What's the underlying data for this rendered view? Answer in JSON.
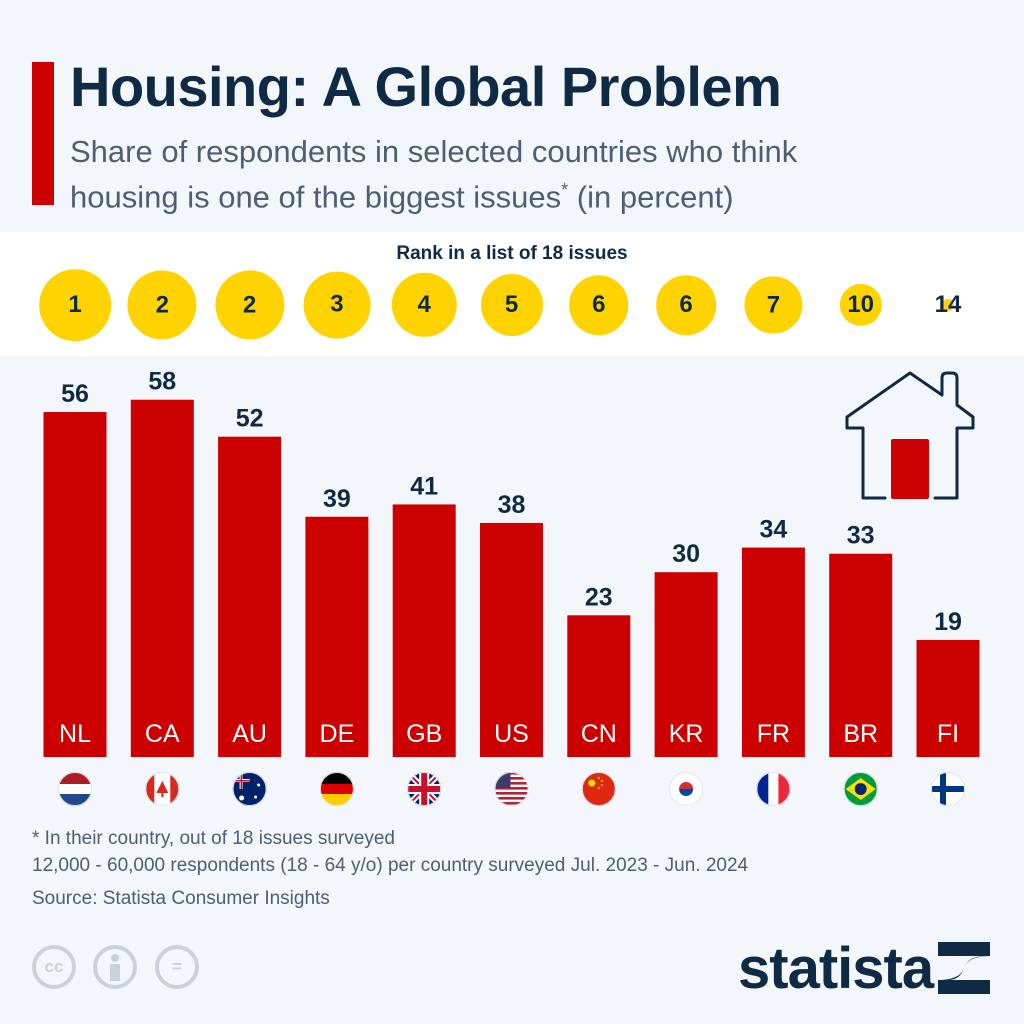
{
  "header": {
    "title": "Housing: A Global Problem",
    "subtitle_line1": "Share of respondents in selected countries who think",
    "subtitle_line2": "housing is one of the biggest issues",
    "subtitle_mark": "*",
    "subtitle_line2_end": " (in percent)"
  },
  "colors": {
    "bar": "#cc0000",
    "rank_circle": "#ffd300",
    "text": "#0f2a44",
    "accent": "#cc0000"
  },
  "chart_data": {
    "type": "bar",
    "categories": [
      "NL",
      "CA",
      "AU",
      "DE",
      "GB",
      "US",
      "CN",
      "KR",
      "FR",
      "BR",
      "FI"
    ],
    "values": [
      56,
      58,
      52,
      39,
      41,
      38,
      23,
      30,
      34,
      33,
      19
    ],
    "ranks": [
      1,
      2,
      2,
      3,
      4,
      5,
      6,
      6,
      7,
      10,
      14
    ],
    "rank_label": "Rank in a list of 18 issues",
    "flags": [
      "netherlands-flag",
      "canada-flag",
      "australia-flag",
      "germany-flag",
      "uk-flag",
      "us-flag",
      "china-flag",
      "south-korea-flag",
      "france-flag",
      "brazil-flag",
      "finland-flag"
    ],
    "ylim": [
      0,
      60
    ],
    "grid": false
  },
  "footer": {
    "note": "* In their country, out of 18 issues surveyed",
    "survey": "12,000 - 60,000 respondents (18 - 64 y/o) per country surveyed Jul. 2023 - Jun. 2024",
    "source": "Source: Statista Consumer Insights",
    "logo": "statista",
    "cc_label": "cc",
    "eq_label": "="
  },
  "icons": {
    "house": "house-icon"
  }
}
